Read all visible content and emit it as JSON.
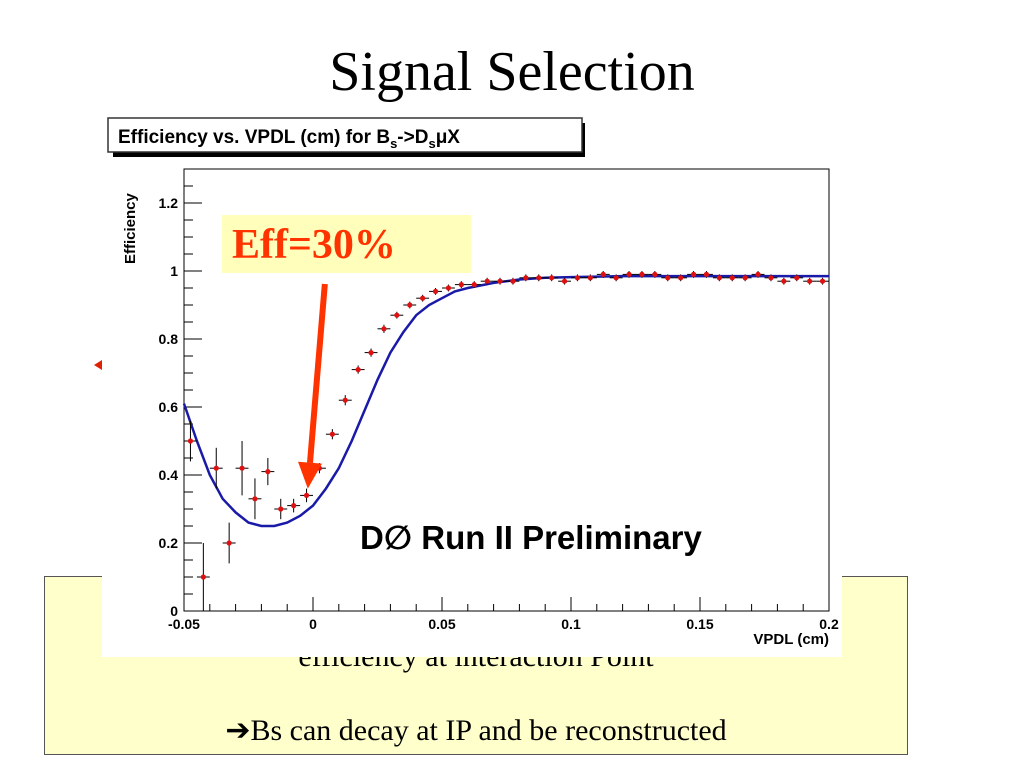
{
  "slide": {
    "title": "Signal Selection",
    "note_line1": "efficiency at interaction Point",
    "note_arrow": "➔",
    "note_line2": "Bs can decay at IP and be reconstructed"
  },
  "colors": {
    "fit_line": "#1a1aa8",
    "points": "#dd1111",
    "error_bars": "#000000",
    "annotation": "#ff3300",
    "annotation_box": "#ffffbb",
    "note_box": "#ffffcc"
  },
  "chart_data": {
    "type": "scatter",
    "title_parts": {
      "prefix": "Efficiency vs. VPDL (cm) for B",
      "sub1": "s",
      "mid": "->D",
      "sub2": "s",
      "suffix": "μX"
    },
    "xlabel": "VPDL (cm)",
    "ylabel": "Efficiency",
    "xlim": [
      -0.05,
      0.2
    ],
    "ylim": [
      0,
      1.3
    ],
    "x_ticks": [
      -0.05,
      0,
      0.05,
      0.1,
      0.15,
      0.2
    ],
    "x_tick_labels": [
      "-0.05",
      "0",
      "0.05",
      "0.1",
      "0.15",
      "0.2"
    ],
    "y_ticks": [
      0,
      0.2,
      0.4,
      0.6,
      0.8,
      1,
      1.2
    ],
    "y_tick_labels": [
      "0",
      "0.2",
      "0.4",
      "0.6",
      "0.8",
      "1",
      "1.2"
    ],
    "grid": false,
    "points": [
      {
        "x": -0.0475,
        "y": 0.5,
        "yerr": 0.06
      },
      {
        "x": -0.0425,
        "y": 0.1,
        "yerr": 0.1
      },
      {
        "x": -0.0375,
        "y": 0.42,
        "yerr": 0.06
      },
      {
        "x": -0.0325,
        "y": 0.2,
        "yerr": 0.06
      },
      {
        "x": -0.0275,
        "y": 0.42,
        "yerr": 0.08
      },
      {
        "x": -0.0225,
        "y": 0.33,
        "yerr": 0.06
      },
      {
        "x": -0.0175,
        "y": 0.41,
        "yerr": 0.04
      },
      {
        "x": -0.0125,
        "y": 0.3,
        "yerr": 0.03
      },
      {
        "x": -0.0075,
        "y": 0.31,
        "yerr": 0.02
      },
      {
        "x": -0.0025,
        "y": 0.34,
        "yerr": 0.02
      },
      {
        "x": 0.0025,
        "y": 0.42,
        "yerr": 0.015
      },
      {
        "x": 0.0075,
        "y": 0.52,
        "yerr": 0.015
      },
      {
        "x": 0.0125,
        "y": 0.62,
        "yerr": 0.015
      },
      {
        "x": 0.0175,
        "y": 0.71,
        "yerr": 0.012
      },
      {
        "x": 0.0225,
        "y": 0.76,
        "yerr": 0.012
      },
      {
        "x": 0.0275,
        "y": 0.83,
        "yerr": 0.012
      },
      {
        "x": 0.0325,
        "y": 0.87,
        "yerr": 0.01
      },
      {
        "x": 0.0375,
        "y": 0.9,
        "yerr": 0.01
      },
      {
        "x": 0.0425,
        "y": 0.92,
        "yerr": 0.01
      },
      {
        "x": 0.0475,
        "y": 0.94,
        "yerr": 0.01
      },
      {
        "x": 0.0525,
        "y": 0.95,
        "yerr": 0.01
      },
      {
        "x": 0.0575,
        "y": 0.96,
        "yerr": 0.01
      },
      {
        "x": 0.0625,
        "y": 0.96,
        "yerr": 0.01
      },
      {
        "x": 0.0675,
        "y": 0.97,
        "yerr": 0.01
      },
      {
        "x": 0.0725,
        "y": 0.97,
        "yerr": 0.01
      },
      {
        "x": 0.0775,
        "y": 0.97,
        "yerr": 0.01
      },
      {
        "x": 0.0825,
        "y": 0.98,
        "yerr": 0.01
      },
      {
        "x": 0.0875,
        "y": 0.98,
        "yerr": 0.01
      },
      {
        "x": 0.0925,
        "y": 0.98,
        "yerr": 0.01
      },
      {
        "x": 0.0975,
        "y": 0.97,
        "yerr": 0.01
      },
      {
        "x": 0.1025,
        "y": 0.98,
        "yerr": 0.01
      },
      {
        "x": 0.1075,
        "y": 0.98,
        "yerr": 0.01
      },
      {
        "x": 0.1125,
        "y": 0.99,
        "yerr": 0.01
      },
      {
        "x": 0.1175,
        "y": 0.98,
        "yerr": 0.01
      },
      {
        "x": 0.1225,
        "y": 0.99,
        "yerr": 0.01
      },
      {
        "x": 0.1275,
        "y": 0.99,
        "yerr": 0.01
      },
      {
        "x": 0.1325,
        "y": 0.99,
        "yerr": 0.01
      },
      {
        "x": 0.1375,
        "y": 0.98,
        "yerr": 0.01
      },
      {
        "x": 0.1425,
        "y": 0.98,
        "yerr": 0.01
      },
      {
        "x": 0.1475,
        "y": 0.99,
        "yerr": 0.01
      },
      {
        "x": 0.1525,
        "y": 0.99,
        "yerr": 0.01
      },
      {
        "x": 0.1575,
        "y": 0.98,
        "yerr": 0.01
      },
      {
        "x": 0.1625,
        "y": 0.98,
        "yerr": 0.01
      },
      {
        "x": 0.1675,
        "y": 0.98,
        "yerr": 0.01
      },
      {
        "x": 0.1725,
        "y": 0.99,
        "yerr": 0.01
      },
      {
        "x": 0.1775,
        "y": 0.98,
        "yerr": 0.01
      },
      {
        "x": 0.1825,
        "y": 0.97,
        "yerr": 0.01
      },
      {
        "x": 0.1875,
        "y": 0.98,
        "yerr": 0.01
      },
      {
        "x": 0.1925,
        "y": 0.97,
        "yerr": 0.01
      },
      {
        "x": 0.1975,
        "y": 0.97,
        "yerr": 0.01
      }
    ],
    "fit_curve": [
      [
        -0.05,
        0.61
      ],
      [
        -0.045,
        0.5
      ],
      [
        -0.04,
        0.4
      ],
      [
        -0.035,
        0.33
      ],
      [
        -0.03,
        0.29
      ],
      [
        -0.025,
        0.26
      ],
      [
        -0.02,
        0.25
      ],
      [
        -0.015,
        0.25
      ],
      [
        -0.01,
        0.26
      ],
      [
        -0.005,
        0.28
      ],
      [
        0,
        0.31
      ],
      [
        0.005,
        0.36
      ],
      [
        0.01,
        0.42
      ],
      [
        0.015,
        0.5
      ],
      [
        0.02,
        0.59
      ],
      [
        0.025,
        0.68
      ],
      [
        0.03,
        0.76
      ],
      [
        0.035,
        0.82
      ],
      [
        0.04,
        0.87
      ],
      [
        0.045,
        0.9
      ],
      [
        0.05,
        0.92
      ],
      [
        0.055,
        0.94
      ],
      [
        0.06,
        0.95
      ],
      [
        0.07,
        0.965
      ],
      [
        0.08,
        0.975
      ],
      [
        0.09,
        0.98
      ],
      [
        0.1,
        0.982
      ],
      [
        0.12,
        0.985
      ],
      [
        0.15,
        0.985
      ],
      [
        0.2,
        0.985
      ]
    ],
    "annotations": {
      "efficiency_label": "Eff=30%",
      "arrow_target": {
        "x": -0.002,
        "y": 0.36
      },
      "watermark": "D∅ Run II Preliminary"
    }
  }
}
